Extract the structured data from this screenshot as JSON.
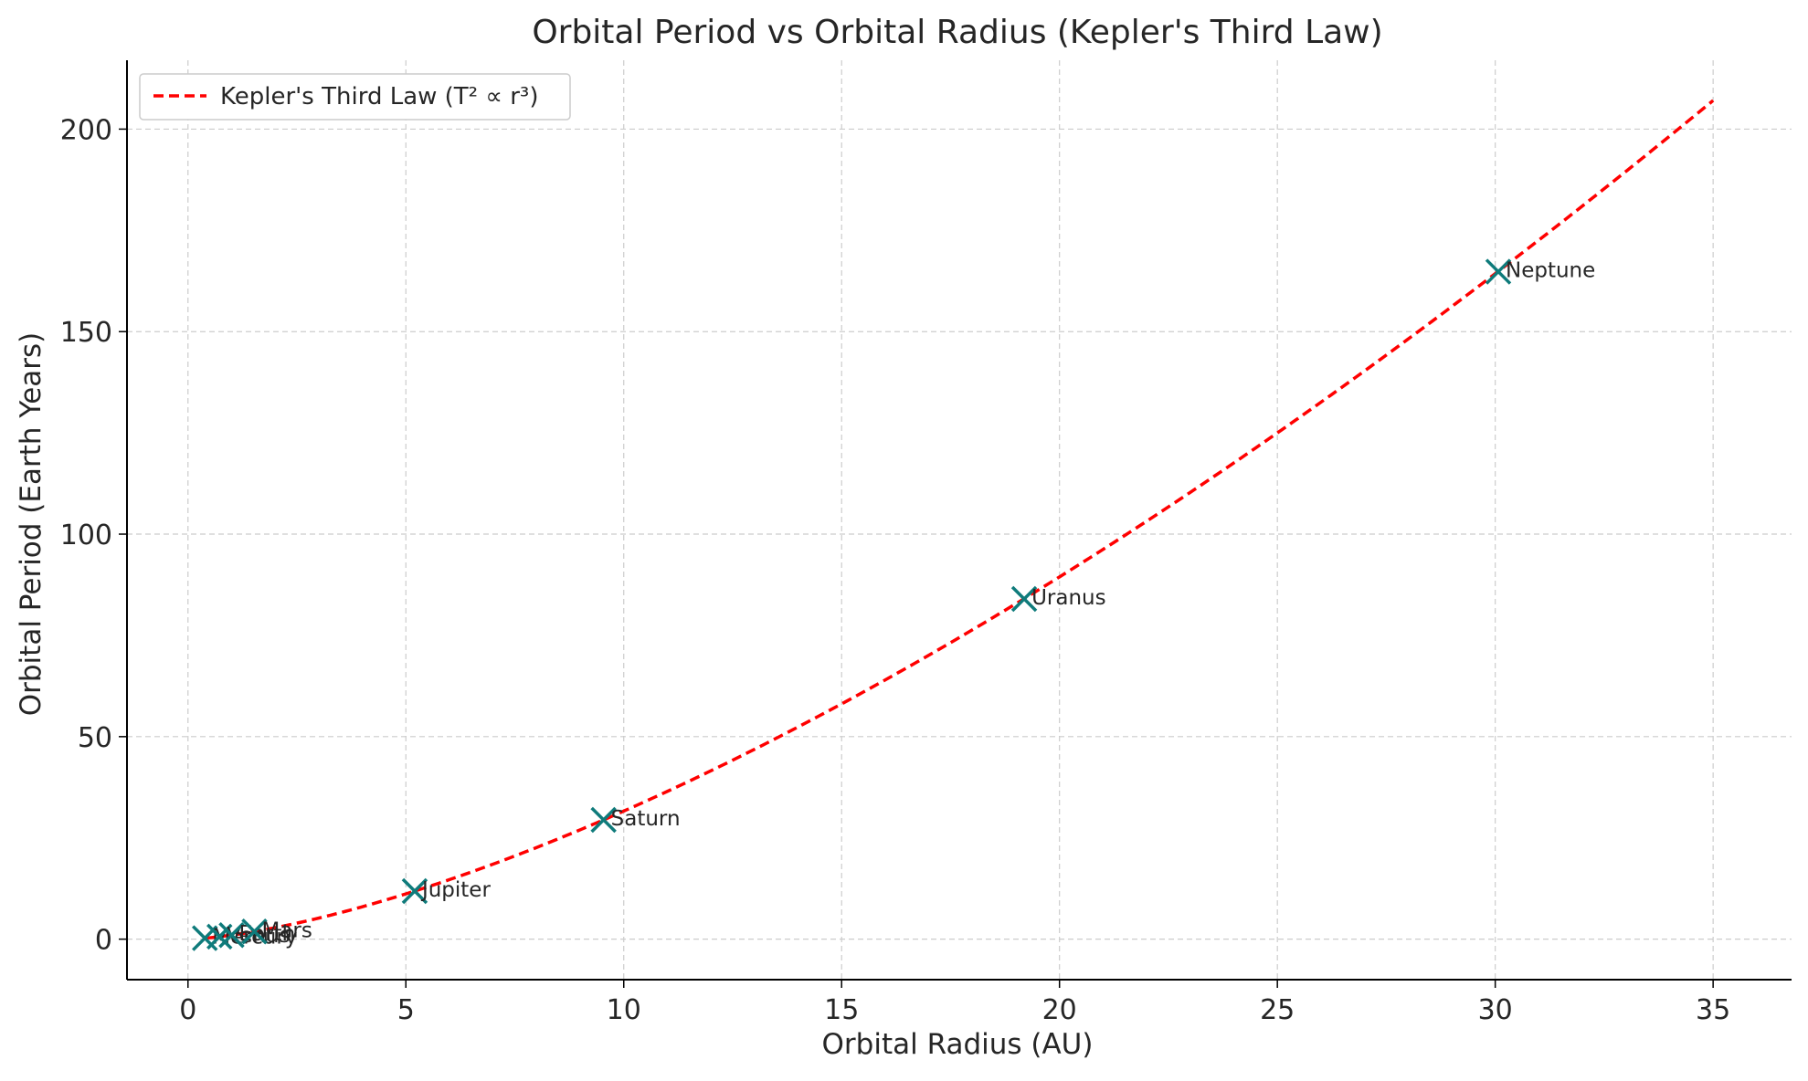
{
  "chart_data": {
    "type": "scatter",
    "title": "Orbital Period vs Orbital Radius (Kepler's Third Law)",
    "xlabel": "Orbital Radius (AU)",
    "ylabel": "Orbital Period (Earth Years)",
    "xlim": [
      -1.4,
      36.8
    ],
    "ylim": [
      -10,
      217
    ],
    "xticks": [
      0,
      5,
      10,
      15,
      20,
      25,
      30,
      35
    ],
    "yticks": [
      0,
      50,
      100,
      150,
      200
    ],
    "grid": true,
    "legend": {
      "placement": "top-left",
      "entries": [
        {
          "label": "Kepler's Third Law (T² ∝ r³)",
          "style": "dashed-line"
        }
      ]
    },
    "curve": {
      "name": "Kepler's Third Law (T² ∝ r³)",
      "formula": "T = r^1.5",
      "x_range": [
        0.387,
        35
      ]
    },
    "points": [
      {
        "label": "Mercury",
        "x": 0.387,
        "y": 0.241
      },
      {
        "label": "Venus",
        "x": 0.723,
        "y": 0.615
      },
      {
        "label": "Earth",
        "x": 1.0,
        "y": 1.0
      },
      {
        "label": "Mars",
        "x": 1.524,
        "y": 1.881
      },
      {
        "label": "Jupiter",
        "x": 5.203,
        "y": 11.86
      },
      {
        "label": "Saturn",
        "x": 9.537,
        "y": 29.46
      },
      {
        "label": "Uranus",
        "x": 19.19,
        "y": 84.01
      },
      {
        "label": "Neptune",
        "x": 30.07,
        "y": 164.8
      }
    ]
  },
  "colors": {
    "curve": "#ff0000",
    "marker": "#0f7b7b",
    "grid": "#cccccc",
    "axis": "#000000",
    "text": "#262626"
  }
}
